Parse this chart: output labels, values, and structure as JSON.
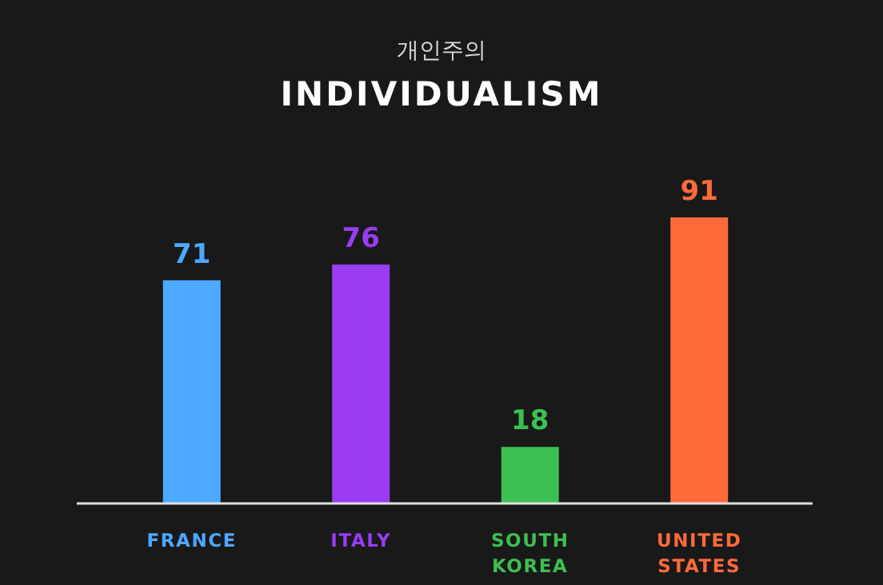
{
  "chart_data": {
    "type": "bar",
    "subtitle": "개인주의",
    "title": "INDIVIDUALISM",
    "categories": [
      "FRANCE",
      "ITALY",
      "SOUTH KOREA",
      "UNITED STATES"
    ],
    "values": [
      71,
      76,
      18,
      91
    ],
    "colors": [
      "#4da8ff",
      "#9a3cf2",
      "#3cbf52",
      "#ff6a3a"
    ],
    "data_labels": true
  }
}
